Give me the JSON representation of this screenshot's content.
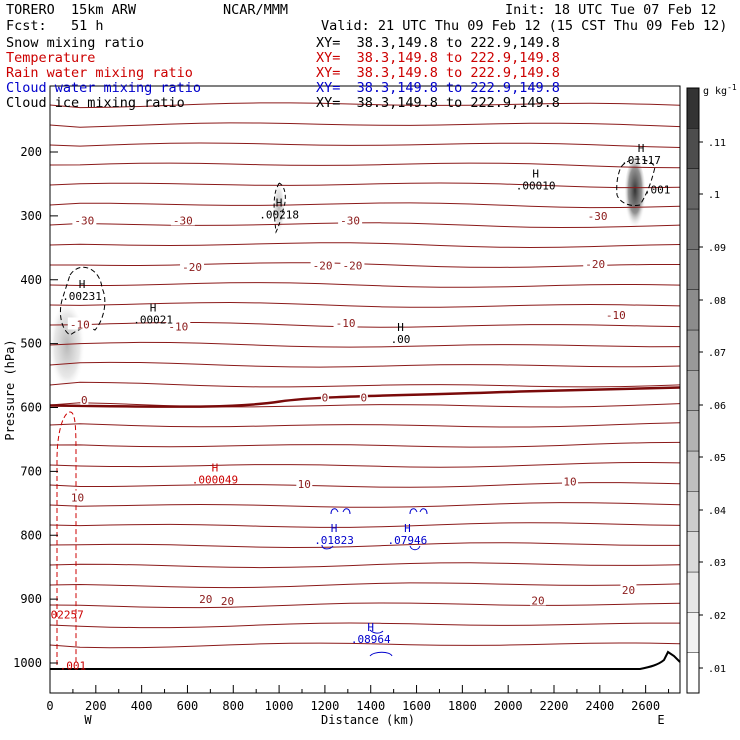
{
  "header": {
    "model": "TORERO  15km ARW",
    "center": "NCAR/MMM",
    "init": "Init: 18 UTC Tue 07 Feb 12",
    "fcst": "Fcst:   51 h",
    "valid": "Valid: 21 UTC Thu 09 Feb 12 (15 CST Thu 09 Feb 12)",
    "fields": [
      {
        "label": "Snow mixing ratio",
        "xy": "XY=  38.3,149.8 to 222.9,149.8",
        "color": "#000000"
      },
      {
        "label": "Temperature",
        "xy": "XY=  38.3,149.8 to 222.9,149.8",
        "color": "#cc0000"
      },
      {
        "label": "Rain water mixing ratio",
        "xy": "XY=  38.3,149.8 to 222.9,149.8",
        "color": "#cc0000"
      },
      {
        "label": "Cloud water mixing ratio",
        "xy": "XY=  38.3,149.8 to 222.9,149.8",
        "color": "#0000cc"
      },
      {
        "label": "Cloud ice mixing ratio",
        "xy": "XY=  38.3,149.8 to 222.9,149.8",
        "color": "#000000"
      }
    ]
  },
  "chart_data": {
    "type": "cross-section contour",
    "xlabel": "Distance (km)",
    "ylabel": "Pressure (hPa)",
    "xlim": [
      0,
      2750
    ],
    "ylim": [
      1050,
      100
    ],
    "x_ticks": [
      0,
      200,
      400,
      600,
      800,
      1000,
      1200,
      1400,
      1600,
      1800,
      2000,
      2200,
      2400,
      2600
    ],
    "y_ticks": [
      200,
      300,
      400,
      500,
      600,
      700,
      800,
      900,
      1000
    ],
    "left_endpoint": "W",
    "right_endpoint": "E",
    "colorbar": {
      "unit": "g kg",
      "unit_exp": "-1",
      "ticks": [
        ".01",
        ".02",
        ".03",
        ".04",
        ".05",
        ".06",
        ".07",
        ".08",
        ".09",
        ".1",
        ".11"
      ],
      "colors": [
        "#ffffff",
        "#f2f2f2",
        "#e6e6e6",
        "#d9d9d9",
        "#cccccc",
        "#bfbfbf",
        "#b2b2b2",
        "#a6a6a6",
        "#999999",
        "#8c8c8c",
        "#7f7f7f",
        "#737373",
        "#666666",
        "#4d4d4d",
        "#333333"
      ]
    },
    "temperature_labels": [
      {
        "text": "-30",
        "x": 150,
        "p": 307
      },
      {
        "text": "-30",
        "x": 580,
        "p": 307
      },
      {
        "text": "-30",
        "x": 1310,
        "p": 307
      },
      {
        "text": "-30",
        "x": 2390,
        "p": 300
      },
      {
        "text": "-20",
        "x": 620,
        "p": 380
      },
      {
        "text": "-20",
        "x": 1190,
        "p": 378
      },
      {
        "text": "-20",
        "x": 1320,
        "p": 378
      },
      {
        "text": "-20",
        "x": 2380,
        "p": 375
      },
      {
        "text": "-10",
        "x": 130,
        "p": 470
      },
      {
        "text": "-10",
        "x": 560,
        "p": 473
      },
      {
        "text": "-10",
        "x": 1290,
        "p": 468
      },
      {
        "text": "-10",
        "x": 2470,
        "p": 455
      },
      {
        "text": "0",
        "x": 150,
        "p": 588
      },
      {
        "text": "0",
        "x": 1200,
        "p": 584
      },
      {
        "text": "0",
        "x": 1370,
        "p": 584
      },
      {
        "text": "10",
        "x": 120,
        "p": 741
      },
      {
        "text": "10",
        "x": 1110,
        "p": 720
      },
      {
        "text": "10",
        "x": 2270,
        "p": 716
      },
      {
        "text": "20",
        "x": 680,
        "p": 900
      },
      {
        "text": "20",
        "x": 775,
        "p": 903
      },
      {
        "text": "20",
        "x": 2130,
        "p": 902
      },
      {
        "text": "20",
        "x": 2525,
        "p": 886
      }
    ],
    "extrema": [
      {
        "label": "H",
        "value": ".00231",
        "x": 140,
        "p": 413,
        "color": "#000000"
      },
      {
        "label": "H",
        "value": ".00021",
        "x": 450,
        "p": 450,
        "color": "#000000"
      },
      {
        "label": "H",
        "value": ".00218",
        "x": 1000,
        "p": 285,
        "color": "#000000"
      },
      {
        "label": "H",
        "value": ".00",
        "x": 1530,
        "p": 480,
        "color": "#000000"
      },
      {
        "label": "H",
        "value": ".00010",
        "x": 2120,
        "p": 240,
        "color": "#000000"
      },
      {
        "label": "H",
        "value": ".01117",
        "x": 2580,
        "p": 200,
        "color": "#000000"
      },
      {
        "label": ".001",
        "value": "",
        "x": 2650,
        "p": 265,
        "color": "#000000"
      },
      {
        "label": "H",
        "value": ".000049",
        "x": 720,
        "p": 700,
        "color": "#cc0000"
      },
      {
        "label": "",
        "value": "02257",
        "x": 75,
        "p": 930,
        "color": "#cc0000"
      },
      {
        "label": "",
        "value": ".001",
        "x": 100,
        "p": 1010,
        "color": "#cc0000"
      },
      {
        "label": "H",
        "value": ".01823",
        "x": 1240,
        "p": 795,
        "color": "#0000cc"
      },
      {
        "label": "H",
        "value": ".07946",
        "x": 1560,
        "p": 795,
        "color": "#0000cc"
      },
      {
        "label": "H",
        "value": ".08964",
        "x": 1400,
        "p": 950,
        "color": "#0000cc"
      }
    ],
    "freezing_level_p": 600,
    "terrain_p": 1012
  }
}
